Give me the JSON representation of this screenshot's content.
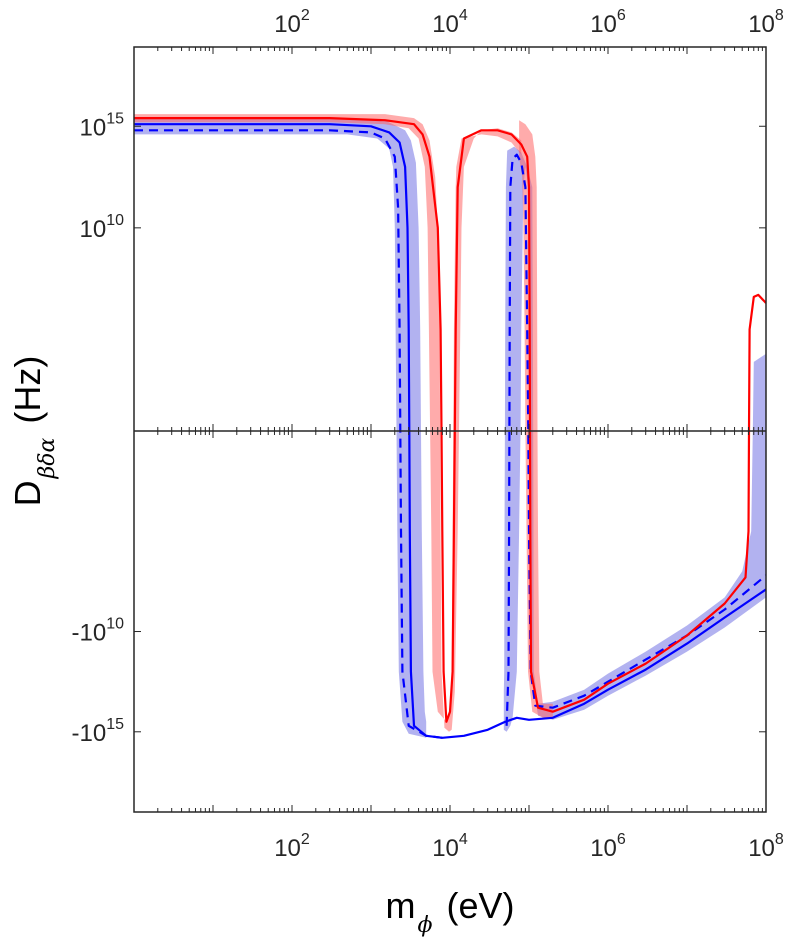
{
  "chart_data": {
    "type": "line",
    "x_scale": "log",
    "y_scale": "signed-log",
    "xlim": [
      1,
      100000000
    ],
    "ylim_signed_log": [
      -19,
      19
    ],
    "grid": false,
    "legend": "none",
    "xlabel": {
      "main": "m",
      "sub": "ϕ",
      "unit": "(eV)"
    },
    "ylabel": {
      "main": "D",
      "sub": "βδα",
      "unit": "(Hz)"
    },
    "x_ticks": [
      {
        "value": 100,
        "base": "10",
        "exp": "2"
      },
      {
        "value": 10000,
        "base": "10",
        "exp": "4"
      },
      {
        "value": 1000000,
        "base": "10",
        "exp": "6"
      },
      {
        "value": 100000000,
        "base": "10",
        "exp": "8"
      }
    ],
    "y_ticks": [
      {
        "value": 15,
        "prefix": "",
        "base": "10",
        "exp": "15"
      },
      {
        "value": 10,
        "prefix": "",
        "base": "10",
        "exp": "10"
      },
      {
        "value": -10,
        "prefix": "-",
        "base": "10",
        "exp": "10"
      },
      {
        "value": -15,
        "prefix": "-",
        "base": "10",
        "exp": "15"
      }
    ],
    "series": [
      {
        "color": "#0000ff",
        "style": "dashed",
        "points": [
          [
            1,
            14.8
          ],
          [
            300,
            14.8
          ],
          [
            1000,
            14.7
          ],
          [
            1500,
            14.4
          ],
          [
            2000,
            13.5
          ],
          [
            2200,
            11
          ],
          [
            2300,
            5
          ],
          [
            2350,
            0
          ],
          [
            2400,
            -5
          ],
          [
            2500,
            -12
          ],
          [
            3000,
            -14.7
          ],
          [
            5000,
            -15.2
          ],
          [
            8000,
            -15.3
          ]
        ]
      },
      {
        "color": "#0000ff",
        "style": "solid",
        "points": [
          [
            1,
            15.1
          ],
          [
            300,
            15.1
          ],
          [
            1000,
            15.0
          ],
          [
            1700,
            14.7
          ],
          [
            2300,
            14.2
          ],
          [
            2700,
            13.0
          ],
          [
            2900,
            10
          ],
          [
            3000,
            5
          ],
          [
            3050,
            0
          ],
          [
            3100,
            -5
          ],
          [
            3200,
            -12
          ],
          [
            3500,
            -14.7
          ],
          [
            5000,
            -15.2
          ],
          [
            8000,
            -15.3
          ],
          [
            15000,
            -15.2
          ],
          [
            30000,
            -14.9
          ],
          [
            50000,
            -14.5
          ],
          [
            70000,
            -14.3
          ],
          [
            100000,
            -14.4
          ],
          [
            200000,
            -14.3
          ],
          [
            500000,
            -13.6
          ],
          [
            1000000,
            -12.9
          ],
          [
            3000000,
            -11.9
          ],
          [
            10000000,
            -10.6
          ],
          [
            30000000,
            -9.3
          ],
          [
            100000000,
            -7.9
          ]
        ]
      },
      {
        "color": "#0000ff",
        "style": "dashed",
        "points": [
          [
            52000,
            -14.7
          ],
          [
            55000,
            -12
          ],
          [
            56000,
            -5
          ],
          [
            57000,
            5
          ],
          [
            58000,
            12
          ],
          [
            62000,
            13.4
          ],
          [
            70000,
            13.6
          ],
          [
            80000,
            13.2
          ],
          [
            90000,
            12
          ],
          [
            95000,
            5
          ],
          [
            98000,
            0
          ],
          [
            100000,
            -5
          ],
          [
            105000,
            -12
          ],
          [
            120000,
            -13.7
          ],
          [
            200000,
            -13.8
          ],
          [
            500000,
            -13.2
          ],
          [
            1000000,
            -12.5
          ],
          [
            3000000,
            -11.4
          ],
          [
            10000000,
            -10.2
          ],
          [
            30000000,
            -8.9
          ],
          [
            100000000,
            -7.2
          ]
        ]
      },
      {
        "color": "#ff0000",
        "style": "solid",
        "points": [
          [
            1,
            15.4
          ],
          [
            300,
            15.4
          ],
          [
            1500,
            15.3
          ],
          [
            3500,
            15.1
          ],
          [
            4500,
            14.6
          ],
          [
            5500,
            13.5
          ],
          [
            7000,
            10
          ],
          [
            7600,
            5
          ],
          [
            7800,
            0
          ],
          [
            8000,
            -5
          ],
          [
            8300,
            -12
          ],
          [
            9000,
            -14.5
          ],
          [
            10000,
            -14.0
          ],
          [
            10800,
            -12
          ],
          [
            11200,
            -5
          ],
          [
            11500,
            0
          ],
          [
            11800,
            5
          ],
          [
            12500,
            12
          ],
          [
            15000,
            14.4
          ],
          [
            25000,
            14.8
          ],
          [
            40000,
            14.8
          ],
          [
            60000,
            14.6
          ],
          [
            80000,
            14.1
          ],
          [
            95000,
            13.5
          ],
          [
            100000,
            12
          ],
          [
            102000,
            5
          ],
          [
            103000,
            0
          ],
          [
            104000,
            -5
          ],
          [
            106000,
            -12
          ],
          [
            130000,
            -13.8
          ],
          [
            200000,
            -14.0
          ],
          [
            500000,
            -13.4
          ],
          [
            1000000,
            -12.6
          ],
          [
            3000000,
            -11.6
          ],
          [
            10000000,
            -10.2
          ],
          [
            30000000,
            -8.6
          ],
          [
            55000000,
            -7.3
          ],
          [
            60000000,
            -5
          ],
          [
            61000000,
            0
          ],
          [
            62000000,
            5
          ],
          [
            70000000,
            6.6
          ],
          [
            80000000,
            6.7
          ],
          [
            100000000,
            6.3
          ]
        ]
      }
    ],
    "bands": [
      {
        "color": "#5555dd",
        "opacity": 0.45,
        "upper": [
          [
            1,
            15.4
          ],
          [
            500,
            15.4
          ],
          [
            1500,
            15.3
          ],
          [
            2700,
            14.8
          ],
          [
            3200,
            14.3
          ],
          [
            3700,
            13.2
          ],
          [
            4000,
            10
          ],
          [
            4200,
            5
          ],
          [
            4300,
            0
          ],
          [
            4400,
            -5
          ],
          [
            4600,
            -12
          ],
          [
            4800,
            -14.0
          ],
          [
            5000,
            -14.5
          ]
        ],
        "lower": [
          [
            1,
            14.6
          ],
          [
            500,
            14.6
          ],
          [
            1200,
            14.4
          ],
          [
            1700,
            13.9
          ],
          [
            1900,
            13
          ],
          [
            2000,
            10
          ],
          [
            2050,
            5
          ],
          [
            2100,
            0
          ],
          [
            2150,
            -5
          ],
          [
            2250,
            -12
          ],
          [
            2500,
            -14.5
          ],
          [
            3000,
            -15.1
          ],
          [
            5000,
            -15.3
          ]
        ]
      },
      {
        "color": "#ff6666",
        "opacity": 0.55,
        "upper": [
          [
            1,
            15.6
          ],
          [
            300,
            15.6
          ],
          [
            1500,
            15.6
          ],
          [
            3500,
            15.4
          ],
          [
            4500,
            15.1
          ],
          [
            5500,
            14.3
          ],
          [
            6500,
            12.5
          ],
          [
            7000,
            10
          ],
          [
            7400,
            5
          ],
          [
            7500,
            0
          ],
          [
            7600,
            -5
          ],
          [
            7800,
            -12
          ],
          [
            8500,
            -14.8
          ],
          [
            9700,
            -15.0
          ],
          [
            10500,
            -14.9
          ],
          [
            11500,
            -13
          ],
          [
            12500,
            -5
          ],
          [
            13000,
            0
          ],
          [
            13500,
            5
          ],
          [
            14000,
            10
          ],
          [
            15000,
            13.0
          ],
          [
            20000,
            14.4
          ],
          [
            25000,
            14.8
          ],
          [
            40000,
            14.9
          ],
          [
            60000,
            14.7
          ],
          [
            80000,
            14.3
          ]
        ],
        "lower": [
          [
            1,
            15.2
          ],
          [
            300,
            15.2
          ],
          [
            1500,
            15.1
          ],
          [
            3000,
            14.9
          ],
          [
            4000,
            14.4
          ],
          [
            4800,
            13.0
          ],
          [
            5200,
            10
          ],
          [
            5400,
            5
          ],
          [
            5600,
            0
          ],
          [
            5800,
            -5
          ],
          [
            6000,
            -12
          ],
          [
            7000,
            -14.0
          ],
          [
            9000,
            -14.5
          ],
          [
            10000,
            -14.0
          ],
          [
            10500,
            -12
          ],
          [
            10800,
            -5
          ],
          [
            11000,
            0
          ],
          [
            11200,
            5
          ],
          [
            11800,
            12
          ],
          [
            12000,
            13.0
          ],
          [
            14000,
            14.4
          ],
          [
            25000,
            14.6
          ],
          [
            40000,
            14.5
          ],
          [
            60000,
            14.2
          ],
          [
            80000,
            13.6
          ]
        ]
      },
      {
        "color": "#5555dd",
        "opacity": 0.45,
        "upper": [
          [
            48000,
            -13.0
          ],
          [
            48500,
            -12
          ],
          [
            49000,
            -5
          ],
          [
            49500,
            0
          ],
          [
            50000,
            5
          ],
          [
            51000,
            12
          ],
          [
            53000,
            13.8
          ],
          [
            65000,
            14.0
          ],
          [
            80000,
            13.7
          ],
          [
            95000,
            13.0
          ],
          [
            110000,
            12
          ],
          [
            112000,
            5
          ],
          [
            113000,
            0
          ],
          [
            114000,
            -5
          ],
          [
            115000,
            -12
          ],
          [
            130000,
            -13.6
          ],
          [
            200000,
            -13.5
          ],
          [
            500000,
            -12.9
          ],
          [
            1000000,
            -12.1
          ],
          [
            3000000,
            -11.0
          ],
          [
            10000000,
            -9.7
          ],
          [
            30000000,
            -8.3
          ],
          [
            50000000,
            -7.0
          ],
          [
            65000000,
            -5
          ],
          [
            68000000,
            0
          ],
          [
            70000000,
            3.4
          ],
          [
            100000000,
            3.8
          ]
        ],
        "lower": [
          [
            48000,
            -14.9
          ],
          [
            52000,
            -15.0
          ],
          [
            58000,
            -14.7
          ],
          [
            62000,
            -14.3
          ],
          [
            70000,
            -12
          ],
          [
            75000,
            -5
          ],
          [
            78000,
            0
          ],
          [
            80000,
            5
          ],
          [
            85000,
            12
          ],
          [
            90000,
            13.0
          ],
          [
            98000,
            12
          ],
          [
            100000,
            5
          ],
          [
            102000,
            0
          ],
          [
            104000,
            -5
          ],
          [
            108000,
            -12
          ],
          [
            130000,
            -14.2
          ],
          [
            200000,
            -14.4
          ],
          [
            500000,
            -13.9
          ],
          [
            1000000,
            -13.2
          ],
          [
            3000000,
            -12.2
          ],
          [
            10000000,
            -11.0
          ],
          [
            30000000,
            -9.8
          ],
          [
            100000000,
            -8.3
          ]
        ]
      },
      {
        "color": "#ff6666",
        "opacity": 0.55,
        "upper": [
          [
            75000,
            15.3
          ],
          [
            90000,
            15.1
          ],
          [
            110000,
            14.6
          ],
          [
            120000,
            13.5
          ],
          [
            125000,
            12
          ],
          [
            127000,
            5
          ],
          [
            128000,
            0
          ],
          [
            130000,
            -5
          ],
          [
            135000,
            -12
          ],
          [
            150000,
            -13.6
          ],
          [
            200000,
            -13.6
          ]
        ],
        "lower": [
          [
            75000,
            13.5
          ],
          [
            82000,
            12.5
          ],
          [
            85000,
            10
          ],
          [
            88000,
            5
          ],
          [
            90000,
            0
          ],
          [
            93000,
            -5
          ],
          [
            97000,
            -12
          ],
          [
            110000,
            -14.0
          ],
          [
            150000,
            -14.3
          ],
          [
            200000,
            -14.3
          ]
        ]
      }
    ]
  }
}
